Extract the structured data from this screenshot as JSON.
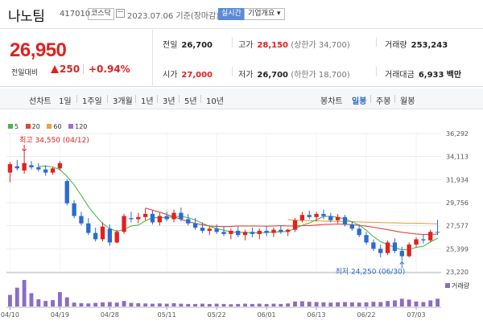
{
  "header": {
    "name": "나노팀",
    "code": "417010",
    "market": "코스닥",
    "date_text": "2023.07.06 기준(장마감)",
    "realtime_label": "실시간",
    "overview_label": "기업개요"
  },
  "quote": {
    "price": "26,950",
    "change_label": "전일대비",
    "change": "250",
    "change_pct": "+0.94%",
    "prev_close_label": "전일",
    "prev_close": "26,700",
    "open_label": "시가",
    "open": "27,000",
    "high_label": "고가",
    "high": "28,150",
    "high_limit": "(상한가 34,700)",
    "low_label": "저가",
    "low": "26,700",
    "low_limit": "(하한가 18,700)",
    "volume_label": "거래량",
    "volume": "253,243",
    "amount_label": "거래대금",
    "amount": "6,933",
    "amount_unit": "백만"
  },
  "period_bar": {
    "line_chart_label": "선차트",
    "periods": [
      "1일",
      "1주일",
      "3개월",
      "1년",
      "3년",
      "5년",
      "10년"
    ],
    "candle_label": "봉차트",
    "candle_periods": [
      "일봉",
      "주봉",
      "월봉"
    ],
    "selected_candle": "일봉"
  },
  "colors": {
    "up": "#e22020",
    "down": "#2a6bd0",
    "ma5": "#4cb84c",
    "ma20": "#e0463a",
    "ma60": "#f0a040",
    "ma120": "#9b6fd0",
    "volume": "#8b6cc7"
  },
  "chart_data": {
    "type": "candlestick",
    "legend": [
      {
        "name": "5",
        "color": "#4cb84c"
      },
      {
        "name": "20",
        "color": "#e0463a"
      },
      {
        "name": "60",
        "color": "#f0a040"
      },
      {
        "name": "120",
        "color": "#9b6fd0"
      }
    ],
    "y_ticks": [
      "36,292",
      "34,113",
      "31,934",
      "29,756",
      "27,577",
      "25,399",
      "23,220"
    ],
    "ylim": [
      23220,
      36292
    ],
    "x_tick_labels": [
      {
        "index": 0,
        "label": "04/10"
      },
      {
        "index": 7,
        "label": "04/19"
      },
      {
        "index": 14,
        "label": "04/28"
      },
      {
        "index": 22,
        "label": "05/11"
      },
      {
        "index": 29,
        "label": "05/22"
      },
      {
        "index": 36,
        "label": "06/01"
      },
      {
        "index": 43,
        "label": "06/13"
      },
      {
        "index": 50,
        "label": "06/22"
      },
      {
        "index": 57,
        "label": "07/03"
      }
    ],
    "high_annotation": {
      "index": 2,
      "value": 34550,
      "text": "최고 34,550 (04/12)"
    },
    "low_annotation": {
      "index": 55,
      "value": 24250,
      "text": "최저 24,250 (06/30)"
    },
    "volume_label": "거래량",
    "candles": [
      {
        "o": 32600,
        "h": 33600,
        "l": 31700,
        "c": 33400
      },
      {
        "o": 33200,
        "h": 33800,
        "l": 32800,
        "c": 33000
      },
      {
        "o": 32800,
        "h": 34550,
        "l": 32500,
        "c": 33500
      },
      {
        "o": 33300,
        "h": 33700,
        "l": 32900,
        "c": 33100
      },
      {
        "o": 33100,
        "h": 33500,
        "l": 32700,
        "c": 32900
      },
      {
        "o": 32900,
        "h": 33300,
        "l": 32300,
        "c": 32600
      },
      {
        "o": 32600,
        "h": 33100,
        "l": 32400,
        "c": 33000
      },
      {
        "o": 33000,
        "h": 33700,
        "l": 32800,
        "c": 33500
      },
      {
        "o": 31800,
        "h": 32000,
        "l": 29500,
        "c": 29700
      },
      {
        "o": 29700,
        "h": 30000,
        "l": 28300,
        "c": 28500
      },
      {
        "o": 28500,
        "h": 28900,
        "l": 27600,
        "c": 27800
      },
      {
        "o": 27800,
        "h": 28300,
        "l": 26700,
        "c": 26900
      },
      {
        "o": 26900,
        "h": 27400,
        "l": 26100,
        "c": 26300
      },
      {
        "o": 26300,
        "h": 27900,
        "l": 26100,
        "c": 27500
      },
      {
        "o": 27300,
        "h": 27700,
        "l": 25700,
        "c": 26000
      },
      {
        "o": 26000,
        "h": 27200,
        "l": 25900,
        "c": 27000
      },
      {
        "o": 27000,
        "h": 28700,
        "l": 26800,
        "c": 28500
      },
      {
        "o": 28300,
        "h": 28900,
        "l": 27900,
        "c": 28200
      },
      {
        "o": 28200,
        "h": 28800,
        "l": 27800,
        "c": 28400
      },
      {
        "o": 28400,
        "h": 29200,
        "l": 28100,
        "c": 28700
      },
      {
        "o": 28700,
        "h": 29000,
        "l": 27700,
        "c": 27900
      },
      {
        "o": 27900,
        "h": 28800,
        "l": 27600,
        "c": 28500
      },
      {
        "o": 28500,
        "h": 28900,
        "l": 28000,
        "c": 28200
      },
      {
        "o": 28200,
        "h": 29100,
        "l": 27900,
        "c": 28800
      },
      {
        "o": 28800,
        "h": 29300,
        "l": 28000,
        "c": 28200
      },
      {
        "o": 28200,
        "h": 28700,
        "l": 27600,
        "c": 27800
      },
      {
        "o": 27800,
        "h": 28300,
        "l": 27200,
        "c": 27400
      },
      {
        "o": 27400,
        "h": 27900,
        "l": 26900,
        "c": 27100
      },
      {
        "o": 27100,
        "h": 27600,
        "l": 26700,
        "c": 27300
      },
      {
        "o": 27300,
        "h": 27700,
        "l": 26800,
        "c": 27000
      },
      {
        "o": 27000,
        "h": 27500,
        "l": 26600,
        "c": 26800
      },
      {
        "o": 26800,
        "h": 27300,
        "l": 26300,
        "c": 27100
      },
      {
        "o": 27100,
        "h": 27500,
        "l": 26500,
        "c": 26700
      },
      {
        "o": 26700,
        "h": 27200,
        "l": 26200,
        "c": 27000
      },
      {
        "o": 27000,
        "h": 27400,
        "l": 26500,
        "c": 26800
      },
      {
        "o": 26800,
        "h": 27300,
        "l": 26300,
        "c": 27100
      },
      {
        "o": 27100,
        "h": 27500,
        "l": 26600,
        "c": 26900
      },
      {
        "o": 26900,
        "h": 27400,
        "l": 26500,
        "c": 27200
      },
      {
        "o": 27200,
        "h": 27600,
        "l": 26800,
        "c": 27000
      },
      {
        "o": 27000,
        "h": 27300,
        "l": 26600,
        "c": 27200
      },
      {
        "o": 27200,
        "h": 28300,
        "l": 27000,
        "c": 28100
      },
      {
        "o": 28100,
        "h": 28900,
        "l": 27900,
        "c": 28600
      },
      {
        "o": 28600,
        "h": 29000,
        "l": 28200,
        "c": 28400
      },
      {
        "o": 28400,
        "h": 28900,
        "l": 28000,
        "c": 28700
      },
      {
        "o": 28700,
        "h": 29100,
        "l": 28200,
        "c": 28500
      },
      {
        "o": 28500,
        "h": 28800,
        "l": 27900,
        "c": 28100
      },
      {
        "o": 28100,
        "h": 28700,
        "l": 27800,
        "c": 28400
      },
      {
        "o": 28400,
        "h": 28600,
        "l": 27500,
        "c": 27700
      },
      {
        "o": 27700,
        "h": 28000,
        "l": 27100,
        "c": 27300
      },
      {
        "o": 27300,
        "h": 27700,
        "l": 26500,
        "c": 26700
      },
      {
        "o": 26700,
        "h": 27000,
        "l": 25800,
        "c": 26000
      },
      {
        "o": 26000,
        "h": 26300,
        "l": 25200,
        "c": 25400
      },
      {
        "o": 25400,
        "h": 25800,
        "l": 24600,
        "c": 25000
      },
      {
        "o": 25000,
        "h": 26200,
        "l": 24800,
        "c": 26000
      },
      {
        "o": 26000,
        "h": 26400,
        "l": 25000,
        "c": 25200
      },
      {
        "o": 25200,
        "h": 25600,
        "l": 24250,
        "c": 24700
      },
      {
        "o": 24700,
        "h": 26000,
        "l": 24600,
        "c": 25800
      },
      {
        "o": 25800,
        "h": 26500,
        "l": 25500,
        "c": 26300
      },
      {
        "o": 26300,
        "h": 26800,
        "l": 25900,
        "c": 26200
      },
      {
        "o": 26200,
        "h": 27200,
        "l": 26000,
        "c": 27000
      },
      {
        "o": 27000,
        "h": 28150,
        "l": 26700,
        "c": 26950
      }
    ],
    "volumes": [
      420,
      680,
      960,
      480,
      260,
      200,
      230,
      520,
      330,
      140,
      120,
      110,
      130,
      150,
      160,
      140,
      200,
      130,
      120,
      110,
      100,
      110,
      100,
      120,
      100,
      90,
      90,
      100,
      90,
      100,
      90,
      80,
      90,
      100,
      90,
      100,
      90,
      100,
      90,
      110,
      180,
      190,
      170,
      160,
      150,
      140,
      150,
      160,
      150,
      140,
      150,
      170,
      160,
      200,
      220,
      280,
      250,
      180,
      160,
      220,
      280
    ],
    "ma": {
      "ma5": [
        null,
        null,
        null,
        null,
        33180,
        33220,
        33140,
        32880,
        32240,
        31440,
        30440,
        29400,
        28540,
        27800,
        27300,
        27060,
        27220,
        27560,
        27640,
        28040,
        28340,
        28340,
        28340,
        28420,
        28480,
        28340,
        28120,
        27820,
        27520,
        27320,
        27160,
        27000,
        26960,
        26920,
        26940,
        26900,
        26940,
        27000,
        27000,
        27060,
        27300,
        27620,
        27840,
        28140,
        28460,
        28460,
        28380,
        28220,
        27940,
        27640,
        27160,
        26560,
        26080,
        25800,
        25520,
        25300,
        25340,
        25540,
        25640,
        26060,
        26400
      ],
      "ma20": [
        null,
        null,
        null,
        null,
        null,
        null,
        null,
        null,
        null,
        null,
        null,
        null,
        null,
        null,
        null,
        null,
        null,
        null,
        null,
        29250,
        29050,
        28870,
        28640,
        28420,
        28180,
        27980,
        27800,
        27660,
        27560,
        27520,
        27500,
        27520,
        27560,
        27560,
        27560,
        27550,
        27540,
        27560,
        27580,
        27560,
        27560,
        27580,
        27600,
        27640,
        27700,
        27720,
        27740,
        27720,
        27680,
        27620,
        27540,
        27440,
        27320,
        27200,
        27080,
        26960,
        26880,
        26800,
        26760,
        26760,
        26790
      ],
      "ma60": [
        null,
        null,
        null,
        null,
        null,
        null,
        null,
        null,
        null,
        null,
        null,
        null,
        null,
        null,
        null,
        null,
        null,
        null,
        null,
        null,
        null,
        null,
        null,
        null,
        null,
        null,
        null,
        null,
        null,
        null,
        null,
        null,
        null,
        null,
        null,
        null,
        null,
        null,
        null,
        28150,
        28100,
        28080,
        28060,
        28040,
        28020,
        28000,
        28000,
        27980,
        27960,
        27940,
        27920,
        27900,
        27880,
        27860,
        27850,
        27830,
        27820,
        27810,
        27800,
        27780,
        27760
      ],
      "ma120": []
    }
  }
}
